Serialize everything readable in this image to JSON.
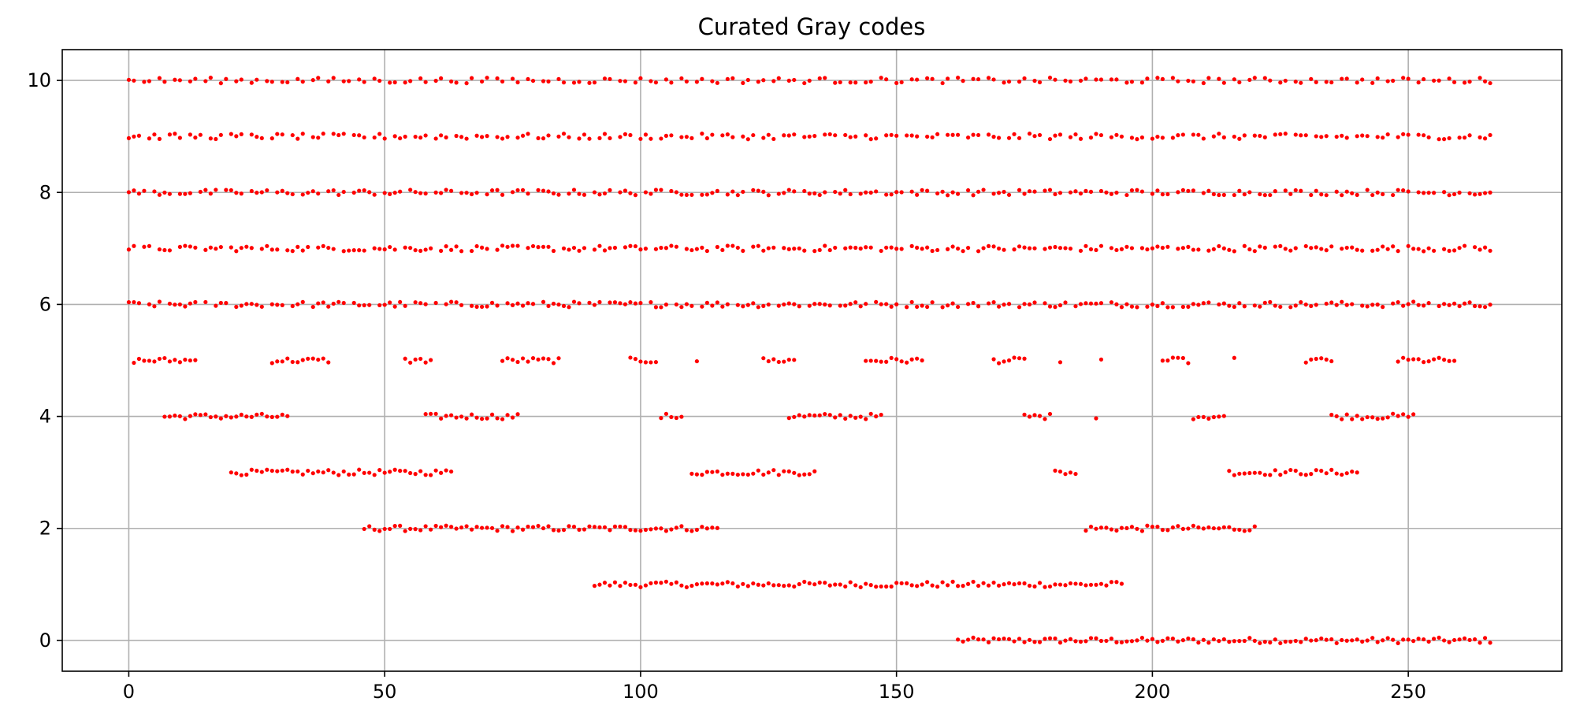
{
  "chart_data": {
    "type": "scatter",
    "title": "Curated Gray codes",
    "xlabel": "",
    "ylabel": "",
    "xlim": [
      -13,
      280
    ],
    "ylim": [
      -0.55,
      10.55
    ],
    "xticks": [
      0,
      50,
      100,
      150,
      200,
      250
    ],
    "yticks": [
      0,
      2,
      4,
      6,
      8,
      10
    ],
    "grid": true,
    "marker_color": "#ff0000",
    "x_count": 267,
    "rows": [
      {
        "y": 0,
        "runs": [
          [
            162,
            266
          ]
        ]
      },
      {
        "y": 1,
        "runs": [
          [
            91,
            194
          ]
        ]
      },
      {
        "y": 2,
        "runs": [
          [
            46,
            115
          ],
          [
            187,
            220
          ]
        ]
      },
      {
        "y": 3,
        "runs": [
          [
            20,
            63
          ],
          [
            110,
            134
          ],
          [
            181,
            185
          ],
          [
            215,
            240
          ]
        ]
      },
      {
        "y": 4,
        "runs": [
          [
            7,
            31
          ],
          [
            58,
            76
          ],
          [
            104,
            108
          ],
          [
            129,
            147
          ],
          [
            175,
            180
          ],
          [
            189,
            189
          ],
          [
            208,
            214
          ],
          [
            235,
            251
          ]
        ]
      },
      {
        "y": 5,
        "runs": [
          [
            1,
            13
          ],
          [
            28,
            39
          ],
          [
            54,
            59
          ],
          [
            73,
            84
          ],
          [
            98,
            103
          ],
          [
            111,
            111
          ],
          [
            124,
            130
          ],
          [
            144,
            155
          ],
          [
            169,
            175
          ],
          [
            182,
            182
          ],
          [
            190,
            190
          ],
          [
            202,
            207
          ],
          [
            216,
            216
          ],
          [
            230,
            235
          ],
          [
            248,
            259
          ]
        ]
      }
    ],
    "dense_rows": [
      {
        "y": 6,
        "gaps": [
          3,
          7,
          14,
          16,
          20,
          27,
          31,
          35,
          43,
          48,
          55,
          59,
          61,
          66,
          73,
          80,
          89,
          93,
          101,
          106,
          111,
          118,
          126,
          132,
          138,
          145,
          151,
          158,
          163,
          167,
          173,
          178,
          184,
          191,
          198,
          205,
          212,
          219,
          226,
          233,
          240,
          246,
          255
        ]
      },
      {
        "y": 7,
        "gaps": [
          2,
          5,
          9,
          14,
          19,
          25,
          30,
          36,
          41,
          47,
          53,
          60,
          66,
          71,
          77,
          84,
          90,
          96,
          102,
          108,
          114,
          121,
          127,
          133,
          139,
          146,
          152,
          159,
          165,
          172,
          178,
          185,
          191,
          197,
          204,
          210,
          217,
          223,
          229,
          236,
          242,
          249,
          256,
          262
        ]
      },
      {
        "y": 8,
        "gaps": [
          4,
          9,
          13,
          18,
          23,
          28,
          33,
          38,
          43,
          49,
          54,
          59,
          64,
          69,
          74,
          79,
          85,
          90,
          95,
          100,
          105,
          111,
          116,
          121,
          126,
          131,
          137,
          142,
          147,
          152,
          157,
          163,
          168,
          173,
          178,
          183,
          189,
          194,
          199,
          204,
          209,
          215,
          220,
          225,
          230,
          235,
          241,
          246,
          251,
          256,
          261
        ]
      },
      {
        "y": 9,
        "gaps": [
          3,
          7,
          11,
          15,
          19,
          23,
          27,
          31,
          35,
          39,
          43,
          47,
          51,
          55,
          59,
          63,
          67,
          71,
          75,
          79,
          83,
          87,
          91,
          95,
          99,
          103,
          107,
          111,
          115,
          119,
          123,
          127,
          131,
          135,
          139,
          143,
          147,
          151,
          155,
          159,
          163,
          167,
          171,
          175,
          179,
          183,
          187,
          191,
          195,
          199,
          203,
          207,
          211,
          215,
          219,
          223,
          227,
          231,
          235,
          239,
          243,
          247,
          251,
          255,
          259,
          263
        ]
      },
      {
        "y": 10,
        "gaps": [
          2,
          5,
          8,
          11,
          14,
          17,
          20,
          23,
          26,
          29,
          32,
          35,
          38,
          41,
          44,
          47,
          50,
          53,
          56,
          59,
          62,
          65,
          68,
          71,
          74,
          77,
          80,
          83,
          86,
          89,
          92,
          95,
          98,
          101,
          104,
          107,
          110,
          113,
          116,
          119,
          122,
          125,
          128,
          131,
          134,
          137,
          140,
          143,
          146,
          149,
          152,
          155,
          158,
          161,
          164,
          167,
          170,
          173,
          176,
          179,
          182,
          185,
          188,
          191,
          194,
          197,
          200,
          203,
          206,
          209,
          212,
          215,
          218,
          221,
          224,
          227,
          230,
          233,
          236,
          239,
          242,
          245,
          248,
          251,
          254,
          257,
          260,
          263
        ]
      }
    ],
    "jitter": 0.05
  }
}
